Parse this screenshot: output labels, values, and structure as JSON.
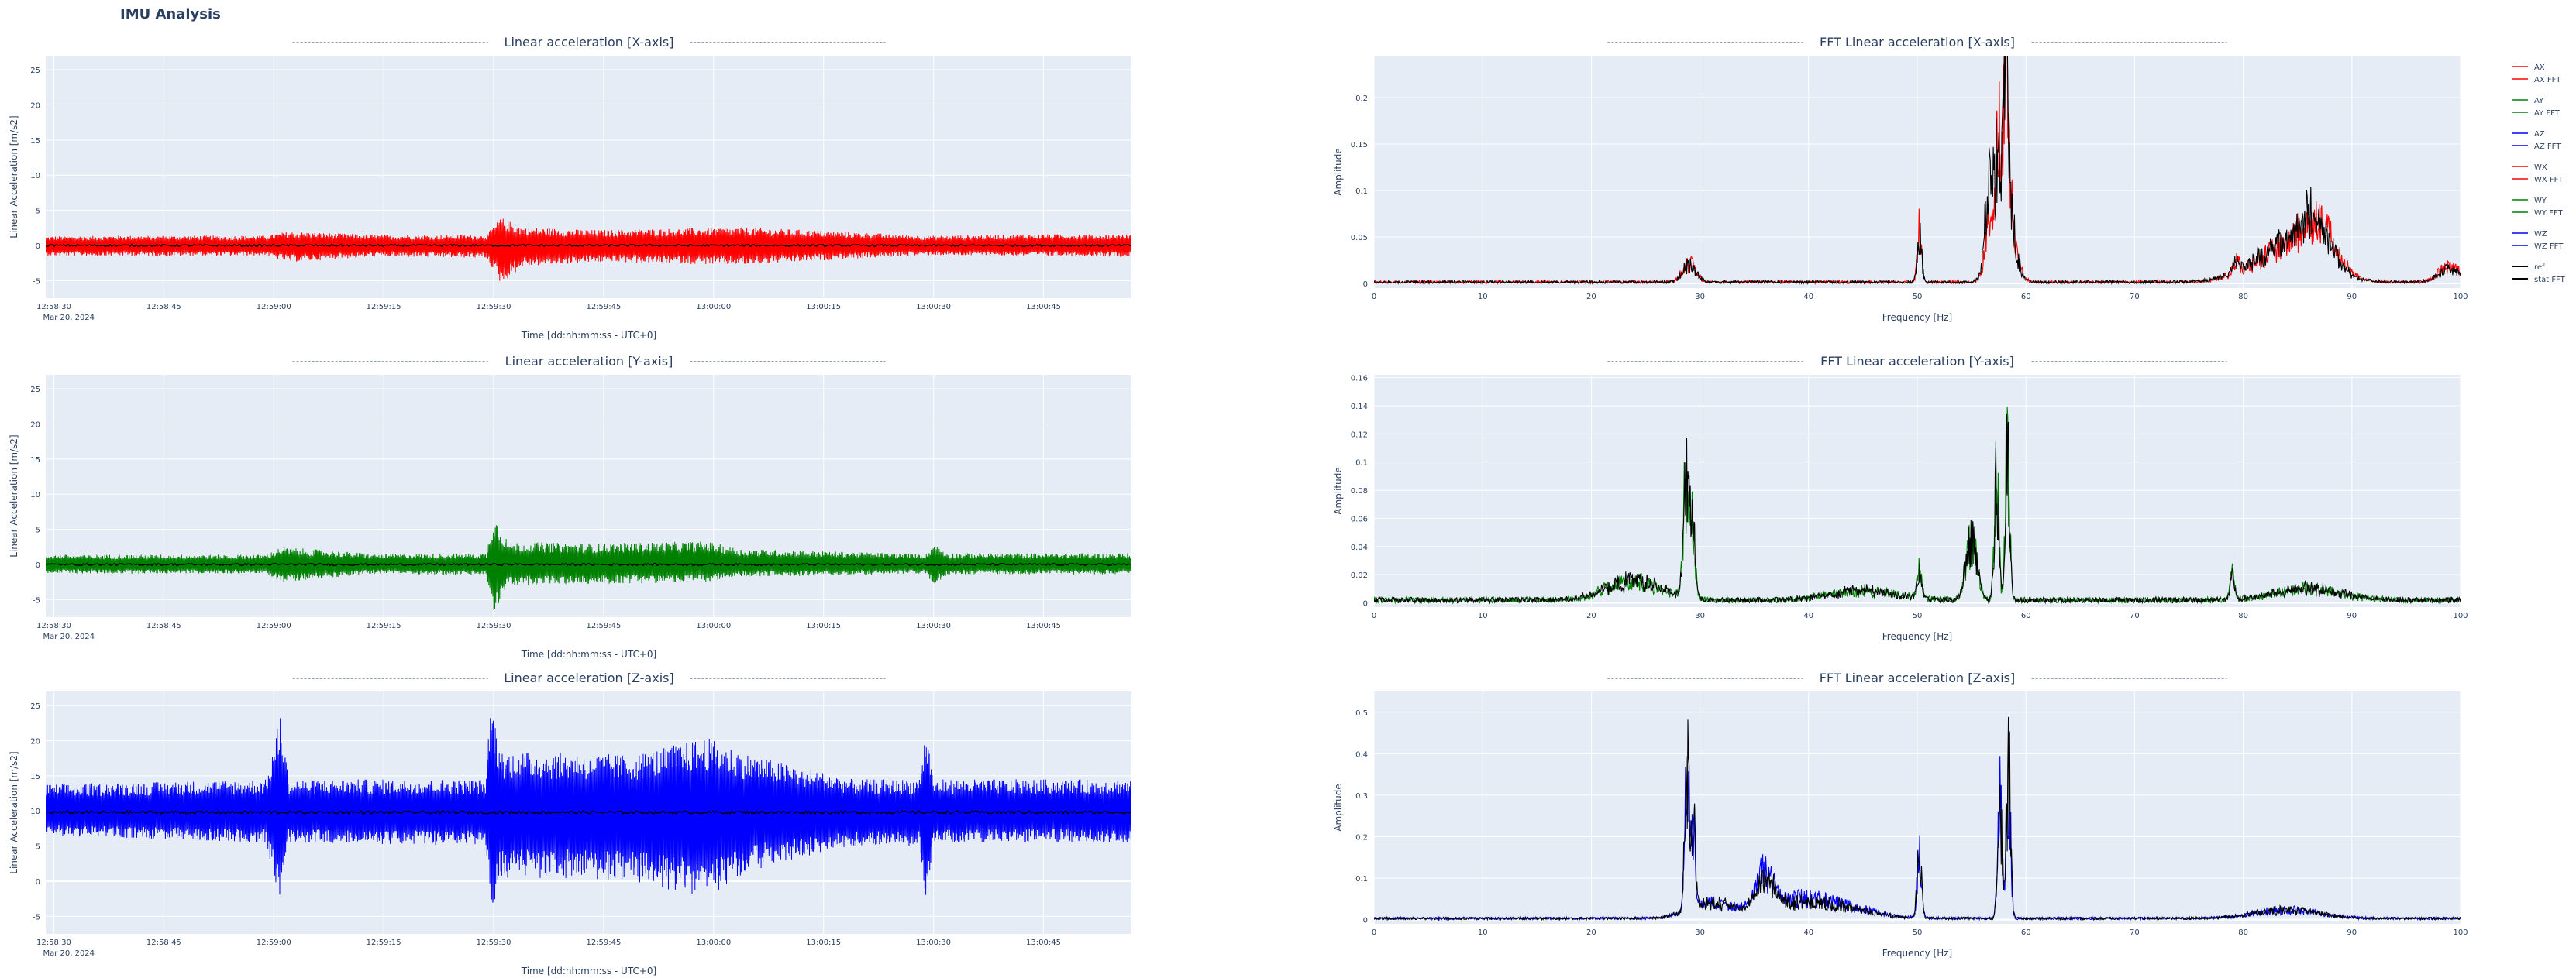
{
  "page": {
    "title": "IMU Analysis"
  },
  "colors": {
    "x": "#ff0000",
    "y": "#008000",
    "z": "#0000ff",
    "ref": "#000000",
    "plot_bg": "#e5ecf6",
    "grid": "#ffffff"
  },
  "legend": {
    "items": [
      {
        "label": "AX",
        "color": "#ff0000"
      },
      {
        "label": "AX FFT",
        "color": "#ff0000"
      },
      {
        "label": "AY",
        "color": "#008000"
      },
      {
        "label": "AY FFT",
        "color": "#008000"
      },
      {
        "label": "AZ",
        "color": "#0000ff"
      },
      {
        "label": "AZ FFT",
        "color": "#0000ff"
      },
      {
        "label": "WX",
        "color": "#ff0000"
      },
      {
        "label": "WX FFT",
        "color": "#ff0000"
      },
      {
        "label": "WY",
        "color": "#008000"
      },
      {
        "label": "WY FFT",
        "color": "#008000"
      },
      {
        "label": "WZ",
        "color": "#0000ff"
      },
      {
        "label": "WZ FFT",
        "color": "#0000ff"
      },
      {
        "label": "ref",
        "color": "#000000"
      },
      {
        "label": "stat FFT",
        "color": "#000000"
      }
    ]
  },
  "chart_data": [
    {
      "type": "line",
      "title": "Linear acceleration [X-axis]",
      "xlabel": "Time [dd:hh:mm:ss - UTC+0]",
      "ylabel": "Linear Acceleration [m/s2]",
      "x_ticks": [
        "12:58:30",
        "12:58:45",
        "12:59:00",
        "12:59:15",
        "12:59:30",
        "12:59:45",
        "13:00:00",
        "13:00:15",
        "13:00:30",
        "13:00:45"
      ],
      "x_date_label": "Mar 20, 2024",
      "x_range": [
        "12:58:29",
        "13:00:57"
      ],
      "y_ticks": [
        -5,
        0,
        5,
        10,
        15,
        20,
        25
      ],
      "ylim": [
        -7.5,
        27
      ],
      "grid": true,
      "series": [
        {
          "name": "AX",
          "color": "#ff0000",
          "baseline": 0,
          "envelope": [
            [
              0,
              1.3
            ],
            [
              10,
              1.4
            ],
            [
              30,
              1.4
            ],
            [
              33,
              2.0
            ],
            [
              45,
              1.5
            ],
            [
              60,
              1.5
            ],
            [
              62,
              4.0
            ],
            [
              65,
              2.6
            ],
            [
              75,
              2.2
            ],
            [
              95,
              2.6
            ],
            [
              110,
              1.9
            ],
            [
              120,
              1.4
            ],
            [
              135,
              1.6
            ],
            [
              148,
              1.6
            ]
          ],
          "envelope_low": [
            [
              0,
              -1.5
            ],
            [
              30,
              -1.5
            ],
            [
              33,
              -2.4
            ],
            [
              45,
              -1.6
            ],
            [
              60,
              -1.8
            ],
            [
              62,
              -5.5
            ],
            [
              65,
              -3.0
            ],
            [
              75,
              -2.4
            ],
            [
              95,
              -2.8
            ],
            [
              110,
              -1.9
            ],
            [
              120,
              -1.4
            ],
            [
              148,
              -1.6
            ]
          ]
        },
        {
          "name": "ref",
          "color": "#000000",
          "baseline": 0,
          "amp": 0.15
        }
      ]
    },
    {
      "type": "line",
      "title": "Linear acceleration [Y-axis]",
      "xlabel": "Time [dd:hh:mm:ss - UTC+0]",
      "ylabel": "Linear Acceleration [m/s2]",
      "x_ticks": [
        "12:58:30",
        "12:58:45",
        "12:59:00",
        "12:59:15",
        "12:59:30",
        "12:59:45",
        "13:00:00",
        "13:00:15",
        "13:00:30",
        "13:00:45"
      ],
      "x_date_label": "Mar 20, 2024",
      "x_range": [
        "12:58:29",
        "13:00:57"
      ],
      "y_ticks": [
        -5,
        0,
        5,
        10,
        15,
        20,
        25
      ],
      "ylim": [
        -7.5,
        27
      ],
      "grid": true,
      "series": [
        {
          "name": "AY",
          "color": "#008000",
          "baseline": 0,
          "envelope": [
            [
              0,
              1.4
            ],
            [
              30,
              1.4
            ],
            [
              32,
              2.5
            ],
            [
              45,
              1.5
            ],
            [
              60,
              1.6
            ],
            [
              61,
              7.2
            ],
            [
              63,
              3.2
            ],
            [
              75,
              3.0
            ],
            [
              90,
              3.3
            ],
            [
              95,
              2.2
            ],
            [
              120,
              1.5
            ],
            [
              121,
              3.0
            ],
            [
              123,
              1.6
            ],
            [
              148,
              1.6
            ]
          ],
          "envelope_low": [
            [
              0,
              -1.3
            ],
            [
              30,
              -1.3
            ],
            [
              32,
              -2.5
            ],
            [
              45,
              -1.3
            ],
            [
              60,
              -1.6
            ],
            [
              61,
              -7.0
            ],
            [
              63,
              -3.0
            ],
            [
              75,
              -2.8
            ],
            [
              90,
              -2.5
            ],
            [
              95,
              -1.8
            ],
            [
              120,
              -1.3
            ],
            [
              121,
              -3.0
            ],
            [
              123,
              -1.4
            ],
            [
              148,
              -1.4
            ]
          ]
        },
        {
          "name": "ref",
          "color": "#000000",
          "baseline": 0,
          "amp": 0.15
        }
      ]
    },
    {
      "type": "line",
      "title": "Linear acceleration [Z-axis]",
      "xlabel": "Time [dd:hh:mm:ss - UTC+0]",
      "ylabel": "Linear Acceleration [m/s2]",
      "x_ticks": [
        "12:58:30",
        "12:58:45",
        "12:59:00",
        "12:59:15",
        "12:59:30",
        "12:59:45",
        "13:00:00",
        "13:00:15",
        "13:00:30",
        "13:00:45"
      ],
      "x_date_label": "Mar 20, 2024",
      "x_range": [
        "12:58:29",
        "13:00:57"
      ],
      "y_ticks": [
        -5,
        0,
        5,
        10,
        15,
        20,
        25
      ],
      "ylim": [
        -7.5,
        27
      ],
      "grid": true,
      "series": [
        {
          "name": "AZ",
          "color": "#0000ff",
          "baseline": 9.8,
          "envelope": [
            [
              0,
              13.8
            ],
            [
              30,
              14.5
            ],
            [
              32,
              24.5
            ],
            [
              33,
              14.5
            ],
            [
              60,
              14.5
            ],
            [
              60.5,
              26.5
            ],
            [
              62,
              18.5
            ],
            [
              80,
              18.0
            ],
            [
              90,
              20.5
            ],
            [
              96,
              18.0
            ],
            [
              110,
              14.5
            ],
            [
              119,
              14.5
            ],
            [
              120,
              22.0
            ],
            [
              121,
              14.5
            ],
            [
              148,
              14.5
            ]
          ],
          "envelope_low": [
            [
              0,
              6.5
            ],
            [
              30,
              5.5
            ],
            [
              32,
              -4.5
            ],
            [
              33,
              5.5
            ],
            [
              60,
              5.0
            ],
            [
              60.5,
              -5.5
            ],
            [
              62,
              0.5
            ],
            [
              80,
              0.0
            ],
            [
              90,
              -2.5
            ],
            [
              96,
              1.5
            ],
            [
              110,
              5.0
            ],
            [
              119,
              5.0
            ],
            [
              120,
              -2.5
            ],
            [
              121,
              5.5
            ],
            [
              148,
              5.5
            ]
          ]
        },
        {
          "name": "ref",
          "color": "#000000",
          "baseline": 9.8,
          "amp": 0.2
        }
      ]
    },
    {
      "type": "line",
      "title": "FFT Linear acceleration [X-axis]",
      "xlabel": "Frequency [Hz]",
      "ylabel": "Amplitude",
      "x_ticks": [
        0,
        10,
        20,
        30,
        40,
        50,
        60,
        70,
        80,
        90,
        100
      ],
      "xlim": [
        0,
        100
      ],
      "y_ticks": [
        0,
        0.05,
        0.1,
        0.15,
        0.2
      ],
      "ylim": [
        -0.005,
        0.245
      ],
      "grid": true,
      "series": [
        {
          "name": "AX FFT",
          "color": "#ff0000",
          "noise": 0.003,
          "peaks": [
            [
              29,
              0.03,
              0.6
            ],
            [
              50.2,
              0.08,
              0.2
            ],
            [
              56.5,
              0.03,
              0.3
            ],
            [
              57.8,
              0.23,
              0.8
            ],
            [
              58.2,
              0.24,
              0.15
            ],
            [
              79.3,
              0.02,
              0.3
            ],
            [
              84,
              0.05,
              3
            ],
            [
              87,
              0.07,
              1.5
            ],
            [
              99,
              0.025,
              1
            ]
          ]
        },
        {
          "name": "stat FFT",
          "color": "#000000",
          "noise": 0.003,
          "peaks": [
            [
              29,
              0.028,
              0.6
            ],
            [
              50.2,
              0.075,
              0.2
            ],
            [
              56.5,
              0.1,
              0.3
            ],
            [
              57.8,
              0.22,
              0.8
            ],
            [
              58.2,
              0.19,
              0.15
            ],
            [
              79.3,
              0.018,
              0.3
            ],
            [
              84,
              0.055,
              3
            ],
            [
              86.5,
              0.065,
              1.5
            ],
            [
              99,
              0.02,
              1
            ]
          ]
        }
      ]
    },
    {
      "type": "line",
      "title": "FFT Linear acceleration [Y-axis]",
      "xlabel": "Frequency [Hz]",
      "ylabel": "Amplitude",
      "x_ticks": [
        0,
        10,
        20,
        30,
        40,
        50,
        60,
        70,
        80,
        90,
        100
      ],
      "xlim": [
        0,
        100
      ],
      "y_ticks": [
        0,
        0.02,
        0.04,
        0.06,
        0.08,
        0.1,
        0.12,
        0.14,
        0.16
      ],
      "ylim": [
        -0.003,
        0.162
      ],
      "grid": true,
      "series": [
        {
          "name": "AY FFT",
          "color": "#008000",
          "noise": 0.004,
          "peaks": [
            [
              24,
              0.02,
              2.5
            ],
            [
              28.7,
              0.115,
              0.25
            ],
            [
              29.3,
              0.075,
              0.25
            ],
            [
              45,
              0.01,
              3
            ],
            [
              50.2,
              0.03,
              0.2
            ],
            [
              55,
              0.065,
              0.5
            ],
            [
              57.3,
              0.13,
              0.2
            ],
            [
              58.3,
              0.155,
              0.2
            ],
            [
              79,
              0.03,
              0.2
            ],
            [
              86,
              0.012,
              3
            ]
          ]
        },
        {
          "name": "stat FFT",
          "color": "#000000",
          "noise": 0.004,
          "peaks": [
            [
              24,
              0.02,
              2.5
            ],
            [
              28.7,
              0.115,
              0.25
            ],
            [
              29.3,
              0.075,
              0.25
            ],
            [
              45,
              0.01,
              3
            ],
            [
              50.2,
              0.028,
              0.2
            ],
            [
              55,
              0.065,
              0.5
            ],
            [
              57.3,
              0.13,
              0.2
            ],
            [
              58.3,
              0.145,
              0.2
            ],
            [
              79,
              0.028,
              0.2
            ],
            [
              86,
              0.012,
              3
            ]
          ]
        }
      ]
    },
    {
      "type": "line",
      "title": "FFT Linear acceleration [Z-axis]",
      "xlabel": "Frequency [Hz]",
      "ylabel": "Amplitude",
      "x_ticks": [
        0,
        10,
        20,
        30,
        40,
        50,
        60,
        70,
        80,
        90,
        100
      ],
      "xlim": [
        0,
        100
      ],
      "y_ticks": [
        0,
        0.1,
        0.2,
        0.3,
        0.4,
        0.5
      ],
      "ylim": [
        -0.01,
        0.55
      ],
      "grid": true,
      "series": [
        {
          "name": "AZ FFT",
          "color": "#0000ff",
          "noise": 0.006,
          "peaks": [
            [
              28.8,
              0.52,
              0.2
            ],
            [
              29.4,
              0.3,
              0.2
            ],
            [
              31,
              0.05,
              2
            ],
            [
              36,
              0.13,
              0.8
            ],
            [
              40,
              0.07,
              4
            ],
            [
              50.2,
              0.23,
              0.2
            ],
            [
              57.6,
              0.4,
              0.2
            ],
            [
              58.4,
              0.53,
              0.2
            ],
            [
              84,
              0.03,
              3
            ]
          ]
        },
        {
          "name": "stat FFT",
          "color": "#000000",
          "noise": 0.006,
          "peaks": [
            [
              28.8,
              0.525,
              0.2
            ],
            [
              29.4,
              0.3,
              0.2
            ],
            [
              31,
              0.05,
              2
            ],
            [
              36,
              0.11,
              0.8
            ],
            [
              40,
              0.06,
              4
            ],
            [
              50.2,
              0.23,
              0.2
            ],
            [
              57.6,
              0.39,
              0.2
            ],
            [
              58.4,
              0.525,
              0.2
            ],
            [
              84,
              0.03,
              3
            ]
          ]
        }
      ]
    }
  ]
}
